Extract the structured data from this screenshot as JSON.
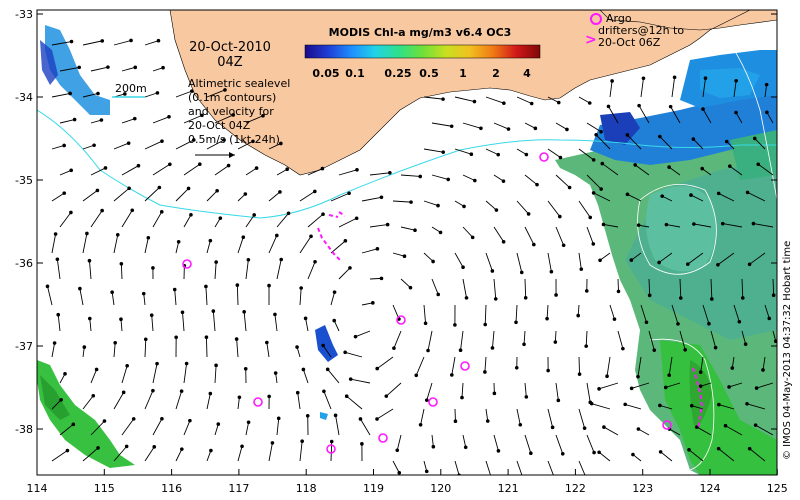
{
  "map": {
    "title": "MODIS Chl-a mg/m3 v6.4 OC3",
    "date_line1": "20-Oct-2010",
    "date_line2": "04Z",
    "contour_label": "200m",
    "desc_lines": [
      "Altimetric sealevel",
      "(0.1m contours)",
      "and velocity for",
      "20-Oct 04Z",
      "0.5m/s (1kt 24h)"
    ],
    "argo_lines": [
      "Argo",
      "drifters@12h to",
      "20-Oct 06Z"
    ],
    "credit": "© IMOS 04-May-2013 04:37:32 Hobart time",
    "colorbar_ticks": [
      "0.05",
      "0.1",
      "0.25",
      "0.5",
      "1",
      "2",
      "4"
    ],
    "colorbar_colors": [
      "#1a0a8c",
      "#1f3fd6",
      "#1e90ff",
      "#22d3e6",
      "#2fe08a",
      "#6ee03a",
      "#c8e020",
      "#f2c020",
      "#f07a14",
      "#d01818",
      "#800808"
    ],
    "x_labels": [
      "114",
      "115",
      "116",
      "117",
      "118",
      "119",
      "120",
      "121",
      "122",
      "123",
      "124",
      "125"
    ],
    "y_labels": [
      "-33",
      "-34",
      "-35",
      "-36",
      "-37",
      "-38"
    ],
    "colors": {
      "land": "#f8c8a0",
      "coast": "#000000",
      "isobath": "#38d8e8",
      "argo": "#ff18ff",
      "arrow": "#000000"
    }
  }
}
